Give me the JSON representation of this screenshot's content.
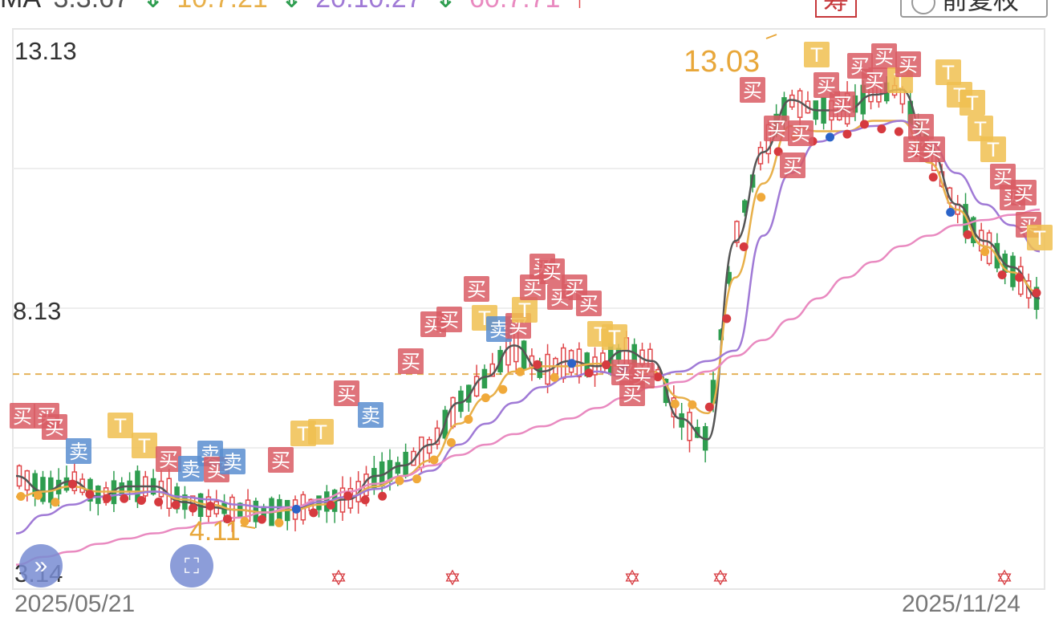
{
  "legend": {
    "prefix": "MA",
    "ma5": "3.3.67",
    "ma10": "10.7.21",
    "ma20": "20.10.27",
    "ma60": "60.7.71"
  },
  "buttons": {
    "fold_label": "筹",
    "adjust_label": "前复权",
    "expand_icon": "double-chevron-right-icon",
    "fullscreen_icon": "fullscreen-icon"
  },
  "axis": {
    "y_top": "13.13",
    "y_mid": "8.13",
    "y_bottom": "3.14",
    "reference_line": 6.95,
    "date_start": "2025/05/21",
    "date_end": "2025/11/24"
  },
  "markers": {
    "buy": "买",
    "sell": "卖",
    "t": "T"
  },
  "colors": {
    "up": "#e0474a",
    "down": "#2e9d4f",
    "ma5": "#555555",
    "ma10": "#e8b04a",
    "ma20": "#a07ad6",
    "ma60": "#e98ac0",
    "buy_box": "#d95c64",
    "sell_box": "#5a8ed0",
    "t_box": "#f0c050"
  },
  "chart_data": {
    "type": "line",
    "title": "",
    "xlabel": "",
    "ylabel": "",
    "ylim": [
      3.14,
      13.13
    ],
    "x_range": [
      "2025/05/21",
      "2025/11/24"
    ],
    "annotations": [
      {
        "label": "13.03",
        "type": "high"
      },
      {
        "label": "4.11",
        "type": "low"
      }
    ],
    "series": [
      {
        "name": "MA5",
        "color": "#555555",
        "values": [
          5.0,
          4.7,
          4.9,
          4.6,
          4.8,
          4.8,
          4.5,
          4.4,
          4.35,
          4.3,
          4.35,
          4.5,
          4.55,
          5.0,
          5.2,
          5.6,
          6.4,
          6.9,
          7.5,
          7.0,
          7.2,
          7.1,
          7.4,
          7.2,
          6.1,
          5.7,
          9.5,
          11.2,
          12.2,
          12.0,
          12.0,
          12.3,
          12.4,
          11.3,
          10.2,
          9.5,
          9.0,
          8.4
        ]
      },
      {
        "name": "MA10",
        "color": "#e8b04a",
        "values": [
          4.6,
          4.7,
          4.8,
          4.7,
          4.7,
          4.7,
          4.55,
          4.45,
          4.35,
          4.3,
          4.35,
          4.45,
          4.6,
          4.8,
          5.0,
          5.3,
          6.0,
          6.5,
          7.0,
          7.1,
          7.1,
          7.15,
          7.1,
          7.0,
          6.5,
          6.2,
          8.8,
          10.6,
          11.7,
          11.6,
          11.6,
          11.8,
          11.8,
          11.0,
          10.1,
          9.4,
          8.9,
          8.5
        ]
      },
      {
        "name": "MA20",
        "color": "#a07ad6",
        "values": [
          3.9,
          4.25,
          4.45,
          4.6,
          4.65,
          4.7,
          4.6,
          4.55,
          4.45,
          4.4,
          4.4,
          4.5,
          4.6,
          4.75,
          4.9,
          5.1,
          5.6,
          6.0,
          6.4,
          6.7,
          6.9,
          7.0,
          6.9,
          6.9,
          7.0,
          7.2,
          7.4,
          9.6,
          10.8,
          11.4,
          11.6,
          11.7,
          11.8,
          11.4,
          10.8,
          10.2,
          9.8,
          9.3
        ]
      },
      {
        "name": "MA60",
        "color": "#e98ac0",
        "values": [
          3.3,
          3.45,
          3.55,
          3.7,
          3.8,
          3.9,
          4.0,
          4.1,
          4.2,
          4.3,
          4.4,
          4.55,
          4.7,
          4.85,
          5.0,
          5.2,
          5.4,
          5.6,
          5.8,
          5.95,
          6.1,
          6.3,
          6.5,
          6.7,
          6.8,
          7.0,
          7.3,
          7.6,
          8.0,
          8.4,
          8.8,
          9.1,
          9.4,
          9.6,
          9.8,
          9.9,
          10.0,
          10.1
        ]
      }
    ]
  }
}
